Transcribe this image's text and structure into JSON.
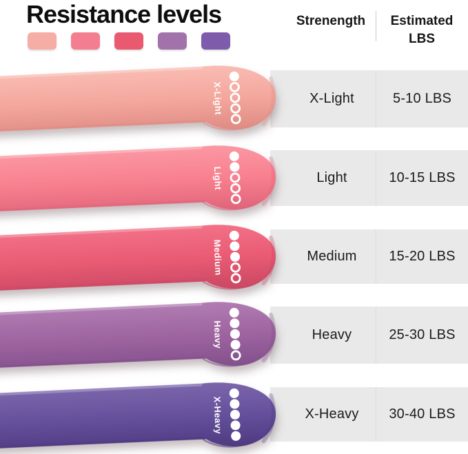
{
  "title": "Resistance levels",
  "table": {
    "col1_header": "Strenength",
    "col2_header_line1": "Estimated",
    "col2_header_line2": "LBS"
  },
  "bands": [
    {
      "label": "X-Light",
      "lbs": "5-10 LBS",
      "level": 1,
      "swatch": "#F6ADA6",
      "light": "#F9BCB3",
      "base": "#F4A79D",
      "dark": "#DE8B83"
    },
    {
      "label": "Light",
      "lbs": "10-15 LBS",
      "level": 2,
      "swatch": "#F37E8F",
      "light": "#FB98A3",
      "base": "#F8808F",
      "dark": "#E0647A"
    },
    {
      "label": "Medium",
      "lbs": "15-20 LBS",
      "level": 3,
      "swatch": "#E9596F",
      "light": "#F27187",
      "base": "#E95B73",
      "dark": "#CA4763"
    },
    {
      "label": "Heavy",
      "lbs": "25-30 LBS",
      "level": 4,
      "swatch": "#A273AB",
      "light": "#B07CB2",
      "base": "#9E64A0",
      "dark": "#82508C"
    },
    {
      "label": "X-Heavy",
      "lbs": "30-40 LBS",
      "level": 5,
      "swatch": "#7E5BAB",
      "light": "#7B66AC",
      "base": "#65509C",
      "dark": "#4E3A80"
    }
  ],
  "dots_total": 5,
  "colors": {
    "stripe_bg": "#E9E9E9",
    "row_divider": "#DCDCDC",
    "header_divider": "#C8C8C8",
    "text": "#161616",
    "band_mark": "#FFFFFF"
  }
}
